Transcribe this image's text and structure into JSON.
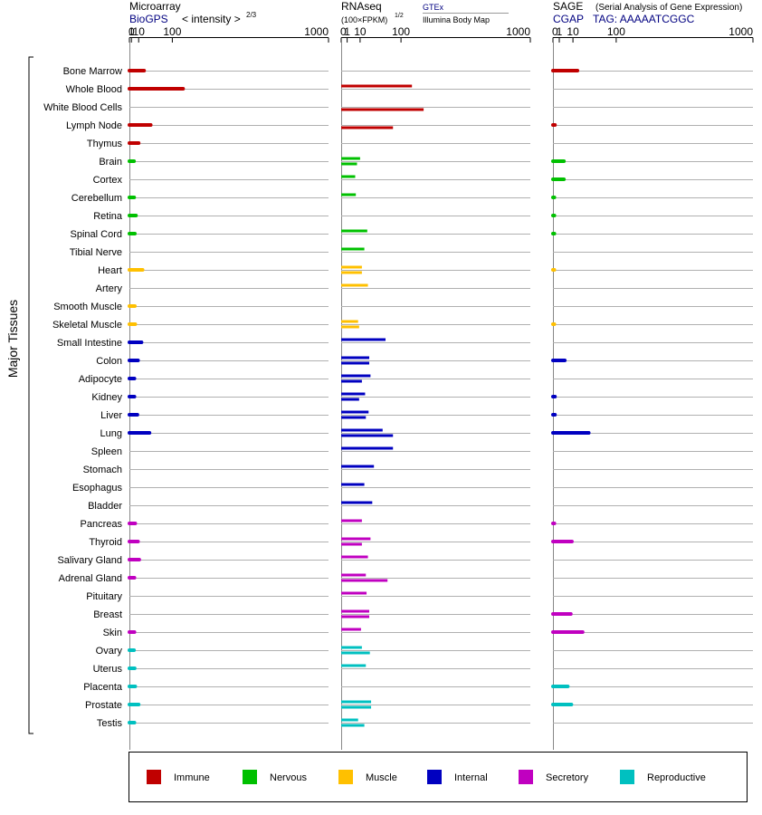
{
  "panels": {
    "microarray": {
      "title": "Microarray",
      "source": "BioGPS",
      "scale_label": "< intensity >",
      "scale_exponent": "2/3"
    },
    "rnaseq": {
      "title": "RNAseq",
      "scale_label": "(100×FPKM)",
      "scale_exponent": "1/2",
      "source_top": "GTEx",
      "source_bottom": "Illumina Body Map"
    },
    "sage": {
      "title": "SAGE",
      "subtitle": "(Serial Analysis of Gene Expression)",
      "source": "CGAP",
      "tag": "TAG: AAAAATCGGC"
    }
  },
  "y_axis_label": "Major Tissues",
  "tick_labels": [
    "0",
    "1",
    "10",
    "100",
    "1000"
  ],
  "category_colors": {
    "Immune": "#c00000",
    "Nervous": "#00c000",
    "Muscle": "#ffc000",
    "Internal": "#0000c0",
    "Secretory": "#c000c0",
    "Reproductive": "#00c0c0"
  },
  "legend": {
    "items": [
      {
        "label": "Immune",
        "color": "#c00000"
      },
      {
        "label": "Nervous",
        "color": "#00c000"
      },
      {
        "label": "Muscle",
        "color": "#ffc000"
      },
      {
        "label": "Internal",
        "color": "#0000c0"
      },
      {
        "label": "Secretory",
        "color": "#c000c0"
      },
      {
        "label": "Reproductive",
        "color": "#00c0c0"
      }
    ]
  },
  "chart_data": {
    "type": "bar",
    "x_scale": "power",
    "ticks": [
      0,
      1,
      10,
      100,
      1000
    ],
    "tissues": [
      {
        "name": "Bone Marrow",
        "category": "Immune",
        "microarray": 20,
        "rnaseq_gtex": null,
        "rnaseq_ibm": null,
        "sage": 15
      },
      {
        "name": "Whole Blood",
        "category": "Immune",
        "microarray": 140,
        "rnaseq_gtex": 140,
        "rnaseq_ibm": null,
        "sage": null
      },
      {
        "name": "White Blood Cells",
        "category": "Immune",
        "microarray": null,
        "rnaseq_gtex": null,
        "rnaseq_ibm": 190,
        "sage": null
      },
      {
        "name": "Lymph Node",
        "category": "Immune",
        "microarray": 35,
        "rnaseq_gtex": null,
        "rnaseq_ibm": 75,
        "sage": 0.1
      },
      {
        "name": "Thymus",
        "category": "Immune",
        "microarray": 10,
        "rnaseq_gtex": null,
        "rnaseq_ibm": null,
        "sage": null
      },
      {
        "name": "Brain",
        "category": "Nervous",
        "microarray": 3.5,
        "rnaseq_gtex": 10,
        "rnaseq_ibm": 7,
        "sage": 3
      },
      {
        "name": "Cortex",
        "category": "Nervous",
        "microarray": null,
        "rnaseq_gtex": 5.5,
        "rnaseq_ibm": null,
        "sage": 3
      },
      {
        "name": "Cerebellum",
        "category": "Nervous",
        "microarray": 3.7,
        "rnaseq_gtex": 6,
        "rnaseq_ibm": null,
        "sage": 0.05
      },
      {
        "name": "Retina",
        "category": "Nervous",
        "microarray": 6,
        "rnaseq_gtex": null,
        "rnaseq_ibm": null,
        "sage": 0.05
      },
      {
        "name": "Spinal Cord",
        "category": "Nervous",
        "microarray": 4.5,
        "rnaseq_gtex": 19,
        "rnaseq_ibm": null,
        "sage": 0.05
      },
      {
        "name": "Tibial Nerve",
        "category": "Nervous",
        "microarray": null,
        "rnaseq_gtex": 15,
        "rnaseq_ibm": null,
        "sage": null
      },
      {
        "name": "Heart",
        "category": "Muscle",
        "microarray": 17,
        "rnaseq_gtex": 12,
        "rnaseq_ibm": 12,
        "sage": 0.02
      },
      {
        "name": "Artery",
        "category": "Muscle",
        "microarray": null,
        "rnaseq_gtex": 20,
        "rnaseq_ibm": null,
        "sage": null
      },
      {
        "name": "Smooth Muscle",
        "category": "Muscle",
        "microarray": 4.5,
        "rnaseq_gtex": null,
        "rnaseq_ibm": null,
        "sage": null
      },
      {
        "name": "Skeletal Muscle",
        "category": "Muscle",
        "microarray": 5,
        "rnaseq_gtex": 8,
        "rnaseq_ibm": 9,
        "sage": 0.02
      },
      {
        "name": "Small Intestine",
        "category": "Internal",
        "microarray": 15,
        "rnaseq_gtex": 55,
        "rnaseq_ibm": null,
        "sage": null
      },
      {
        "name": "Colon",
        "category": "Internal",
        "microarray": 9,
        "rnaseq_gtex": 22,
        "rnaseq_ibm": 22,
        "sage": 3.5
      },
      {
        "name": "Adipocyte",
        "category": "Internal",
        "microarray": 4,
        "rnaseq_gtex": 24,
        "rnaseq_ibm": 12,
        "sage": null
      },
      {
        "name": "Kidney",
        "category": "Internal",
        "microarray": 4,
        "rnaseq_gtex": 16,
        "rnaseq_ibm": 9,
        "sage": 0.1
      },
      {
        "name": "Liver",
        "category": "Internal",
        "microarray": 8,
        "rnaseq_gtex": 21,
        "rnaseq_ibm": 17,
        "sage": 0.1
      },
      {
        "name": "Lung",
        "category": "Internal",
        "microarray": 32,
        "rnaseq_gtex": 48,
        "rnaseq_ibm": 75,
        "sage": 32
      },
      {
        "name": "Spleen",
        "category": "Internal",
        "microarray": null,
        "rnaseq_gtex": 75,
        "rnaseq_ibm": null,
        "sage": null
      },
      {
        "name": "Stomach",
        "category": "Internal",
        "microarray": null,
        "rnaseq_gtex": 30,
        "rnaseq_ibm": null,
        "sage": null
      },
      {
        "name": "Esophagus",
        "category": "Internal",
        "microarray": null,
        "rnaseq_gtex": 15,
        "rnaseq_ibm": null,
        "sage": null
      },
      {
        "name": "Bladder",
        "category": "Internal",
        "microarray": null,
        "rnaseq_gtex": 27,
        "rnaseq_ibm": null,
        "sage": null
      },
      {
        "name": "Pancreas",
        "category": "Secretory",
        "microarray": 5,
        "rnaseq_gtex": 12,
        "rnaseq_ibm": null,
        "sage": 0.05
      },
      {
        "name": "Thyroid",
        "category": "Secretory",
        "microarray": 9,
        "rnaseq_gtex": 24,
        "rnaseq_ibm": 12,
        "sage": 9
      },
      {
        "name": "Salivary Gland",
        "category": "Secretory",
        "microarray": 11,
        "rnaseq_gtex": 20,
        "rnaseq_ibm": null,
        "sage": null
      },
      {
        "name": "Adrenal Gland",
        "category": "Secretory",
        "microarray": 4,
        "rnaseq_gtex": 17,
        "rnaseq_ibm": 60,
        "sage": null
      },
      {
        "name": "Pituitary",
        "category": "Secretory",
        "microarray": null,
        "rnaseq_gtex": 18,
        "rnaseq_ibm": null,
        "sage": null
      },
      {
        "name": "Breast",
        "category": "Secretory",
        "microarray": null,
        "rnaseq_gtex": 22,
        "rnaseq_ibm": 22,
        "sage": 8
      },
      {
        "name": "Skin",
        "category": "Secretory",
        "microarray": 4,
        "rnaseq_gtex": 11,
        "rnaseq_ibm": null,
        "sage": 22
      },
      {
        "name": "Ovary",
        "category": "Reproductive",
        "microarray": 3.5,
        "rnaseq_gtex": 12,
        "rnaseq_ibm": 23,
        "sage": null
      },
      {
        "name": "Uterus",
        "category": "Reproductive",
        "microarray": 4.3,
        "rnaseq_gtex": 17,
        "rnaseq_ibm": null,
        "sage": null
      },
      {
        "name": "Placenta",
        "category": "Reproductive",
        "microarray": 5,
        "rnaseq_gtex": null,
        "rnaseq_ibm": null,
        "sage": 5.5
      },
      {
        "name": "Prostate",
        "category": "Reproductive",
        "microarray": 10,
        "rnaseq_gtex": 25,
        "rnaseq_ibm": 25,
        "sage": 8.5
      },
      {
        "name": "Testis",
        "category": "Reproductive",
        "microarray": 4,
        "rnaseq_gtex": 8,
        "rnaseq_ibm": 15,
        "sage": null
      }
    ]
  }
}
